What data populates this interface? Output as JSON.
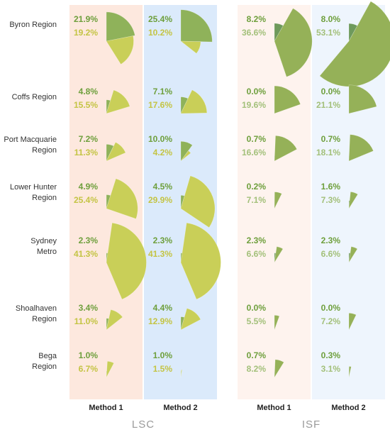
{
  "chart_data": {
    "type": "polar-area",
    "groups": [
      {
        "label": "LSC",
        "methods": [
          "Method 1",
          "Method 2"
        ]
      },
      {
        "label": "ISF",
        "methods": [
          "Method 1",
          "Method 2"
        ]
      }
    ],
    "columns": [
      "LSC Method 1",
      "LSC Method 2",
      "ISF Method 1",
      "ISF Method 2"
    ],
    "regions": [
      {
        "lines": [
          "Byron Region"
        ],
        "pairs": [
          [
            21.9,
            19.2
          ],
          [
            25.4,
            10.2
          ],
          [
            8.2,
            36.6
          ],
          [
            8.0,
            53.1
          ]
        ]
      },
      {
        "lines": [
          "Coffs Region"
        ],
        "pairs": [
          [
            4.8,
            15.5
          ],
          [
            7.1,
            17.6
          ],
          [
            0.0,
            19.6
          ],
          [
            0.0,
            21.1
          ]
        ]
      },
      {
        "lines": [
          "Port Macquarie",
          "Region"
        ],
        "pairs": [
          [
            7.2,
            11.3
          ],
          [
            10.0,
            4.2
          ],
          [
            0.7,
            16.6
          ],
          [
            0.7,
            18.1
          ]
        ]
      },
      {
        "lines": [
          "Lower Hunter",
          "Region"
        ],
        "pairs": [
          [
            4.9,
            25.4
          ],
          [
            4.5,
            29.9
          ],
          [
            0.2,
            7.1
          ],
          [
            1.6,
            7.3
          ]
        ]
      },
      {
        "lines": [
          "Sydney",
          "Metro"
        ],
        "pairs": [
          [
            2.3,
            41.3
          ],
          [
            2.3,
            41.3
          ],
          [
            2.3,
            6.6
          ],
          [
            2.3,
            6.6
          ]
        ]
      },
      {
        "lines": [
          "Shoalhaven",
          "Region"
        ],
        "pairs": [
          [
            3.4,
            11.0
          ],
          [
            4.4,
            12.9
          ],
          [
            0.0,
            5.5
          ],
          [
            0.0,
            7.2
          ]
        ]
      },
      {
        "lines": [
          "Bega",
          "Region"
        ],
        "pairs": [
          [
            1.0,
            6.7
          ],
          [
            1.0,
            1.5
          ],
          [
            0.7,
            8.2
          ],
          [
            0.3,
            3.1
          ]
        ]
      }
    ]
  },
  "colors": {
    "lsc_m1_bg": "#fde8de",
    "lsc_m2_bg": "#dbeafb",
    "isf_m1_bg": "#fef3ee",
    "isf_m2_bg": "#eef5fd",
    "lsc_first_wedge": "#8fb25a",
    "lsc_second_wedge": "#c9cf58",
    "isf_first_wedge": "#6e9a5c",
    "isf_second_wedge": "#95b158",
    "lsc_first_text": "#6e9f3c",
    "lsc_second_text": "#c4c444",
    "isf_first_text": "#6e9f3c",
    "isf_second_text": "#a3c07a",
    "region_text": "#333333",
    "method_text": "#222222",
    "group_text": "#9a9a9a"
  }
}
